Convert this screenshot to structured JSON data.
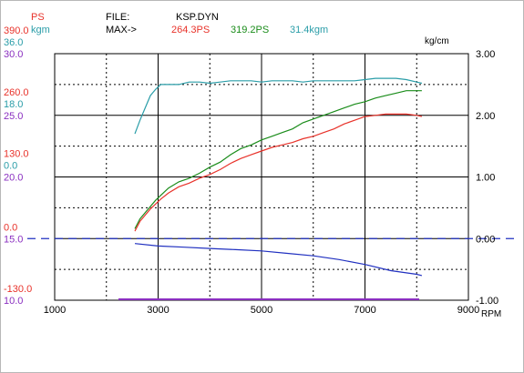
{
  "header": {
    "unit_ps": "PS",
    "unit_kgm": "kgm",
    "file_label": "FILE:",
    "file_name": "KSP.DYN",
    "max_label": "MAX->",
    "max_ps": "264.3PS",
    "max_ps2": "319.2PS",
    "max_kgm": "31.4kgm",
    "right_unit": "kg/cm"
  },
  "colors": {
    "ps_red": "#e8322a",
    "kgm_teal": "#2a9da8",
    "purple": "#8a2fc0",
    "power_green": "#1a8c1a",
    "neg_blue": "#2030c0",
    "grid": "#000000"
  },
  "left_axis_labels": [
    {
      "text": "390.0",
      "color": "red",
      "row": 0
    },
    {
      "text": "36.0",
      "color": "teal",
      "row": 0
    },
    {
      "text": "30.0",
      "color": "purple",
      "row": 0
    },
    {
      "text": "260.0",
      "color": "red",
      "row": 1
    },
    {
      "text": "18.0",
      "color": "teal",
      "row": 1
    },
    {
      "text": "25.0",
      "color": "purple",
      "row": 1
    },
    {
      "text": "130.0",
      "color": "red",
      "row": 2
    },
    {
      "text": "0.0",
      "color": "teal",
      "row": 2
    },
    {
      "text": "20.0",
      "color": "purple",
      "row": 2
    },
    {
      "text": "0.0",
      "color": "red",
      "row": 3
    },
    {
      "text": "15.0",
      "color": "purple",
      "row": 3
    },
    {
      "text": "-130.0",
      "color": "red",
      "row": 4
    },
    {
      "text": "10.0",
      "color": "purple",
      "row": 4
    }
  ],
  "chart_data": {
    "type": "line",
    "xlabel": "RPM",
    "x_ticks": [
      "1000",
      "3000",
      "5000",
      "7000",
      "9000"
    ],
    "xlim": [
      1000,
      9000
    ],
    "right_ticks": [
      "3.00",
      "2.00",
      "1.00",
      "0.00",
      "-1.00"
    ],
    "right_ylim": [
      -1.0,
      3.0
    ],
    "left_ylim": [
      10.0,
      30.0
    ],
    "grid": true,
    "series": [
      {
        "key": "ps_upper_teal",
        "color": "kgm_teal",
        "axis": "purple",
        "x": [
          2550,
          2650,
          2750,
          2850,
          2950,
          3050,
          3200,
          3400,
          3600,
          3800,
          4000,
          4200,
          4400,
          4600,
          4800,
          5000,
          5200,
          5400,
          5600,
          5800,
          6000,
          6200,
          6400,
          6600,
          6800,
          7000,
          7200,
          7400,
          7600,
          7800,
          8000,
          8100
        ],
        "y": [
          23.5,
          24.6,
          25.6,
          26.6,
          27.1,
          27.5,
          27.5,
          27.5,
          27.7,
          27.7,
          27.6,
          27.7,
          27.8,
          27.8,
          27.8,
          27.7,
          27.8,
          27.8,
          27.8,
          27.7,
          27.8,
          27.8,
          27.8,
          27.8,
          27.8,
          27.9,
          28.0,
          28.0,
          28.0,
          27.9,
          27.7,
          27.6
        ]
      },
      {
        "key": "power_green",
        "color": "power_green",
        "axis": "purple",
        "x": [
          2550,
          2650,
          2750,
          2850,
          2950,
          3050,
          3200,
          3400,
          3600,
          3800,
          4000,
          4200,
          4400,
          4600,
          4800,
          5000,
          5200,
          5400,
          5600,
          5800,
          6000,
          6200,
          6400,
          6600,
          6800,
          7000,
          7200,
          7400,
          7600,
          7800,
          8000,
          8100
        ],
        "y": [
          15.8,
          16.6,
          17.1,
          17.6,
          18.1,
          18.5,
          19.1,
          19.6,
          19.9,
          20.3,
          20.8,
          21.2,
          21.8,
          22.3,
          22.6,
          23.0,
          23.3,
          23.6,
          23.9,
          24.4,
          24.7,
          25.0,
          25.3,
          25.6,
          25.9,
          26.1,
          26.4,
          26.6,
          26.8,
          27.0,
          27.0,
          27.0
        ]
      },
      {
        "key": "ps_red",
        "color": "ps_red",
        "axis": "purple",
        "x": [
          2550,
          2650,
          2750,
          2850,
          2950,
          3050,
          3200,
          3400,
          3600,
          3800,
          4000,
          4200,
          4400,
          4600,
          4800,
          5000,
          5200,
          5400,
          5600,
          5800,
          6000,
          6200,
          6400,
          6600,
          6800,
          7000,
          7200,
          7400,
          7600,
          7800,
          8000,
          8100
        ],
        "y": [
          15.6,
          16.4,
          16.9,
          17.4,
          17.8,
          18.2,
          18.7,
          19.2,
          19.5,
          19.9,
          20.2,
          20.6,
          21.1,
          21.5,
          21.8,
          22.1,
          22.4,
          22.6,
          22.8,
          23.1,
          23.3,
          23.6,
          23.9,
          24.3,
          24.6,
          24.9,
          25.0,
          25.1,
          25.1,
          25.1,
          25.0,
          24.9
        ]
      },
      {
        "key": "ref_blue",
        "color": "neg_blue",
        "axis": "purple",
        "x": [
          2550,
          3000,
          3500,
          4000,
          4500,
          5000,
          5500,
          6000,
          6500,
          7000,
          7500,
          8000,
          8100
        ],
        "y": [
          14.6,
          14.4,
          14.3,
          14.2,
          14.1,
          14.0,
          13.8,
          13.6,
          13.3,
          12.9,
          12.4,
          12.1,
          12.0
        ]
      }
    ],
    "zero_line": {
      "value": 15.0,
      "style": "dashed",
      "color": "neg_blue"
    },
    "base_line": {
      "value": 10.0,
      "color": "purple"
    }
  }
}
